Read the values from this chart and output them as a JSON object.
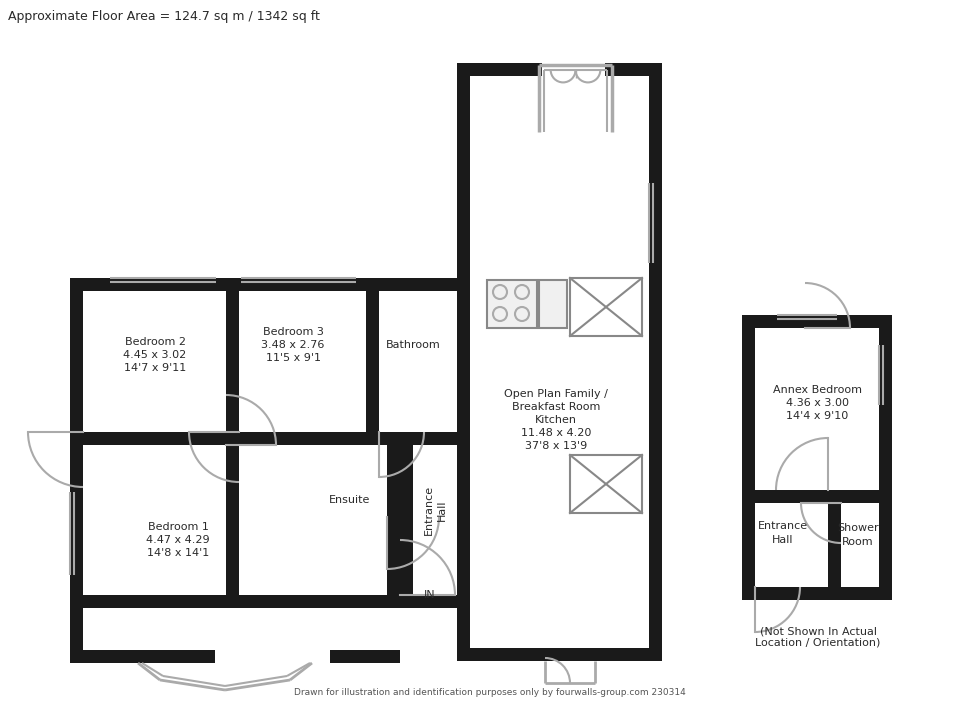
{
  "title_text": "Approximate Floor Area = 124.7 sq m / 1342 sq ft",
  "footer_text": "Drawn for illustration and identification purposes only by fourwalls-group.com 230314",
  "annex_note": "(Not Shown In Actual\nLocation / Orientation)",
  "bg_color": "#ffffff",
  "wall_black": "#1a1a1a",
  "wall_gray": "#aaaaaa",
  "text_dark": "#2a2a2a",
  "text_gray": "#555555"
}
